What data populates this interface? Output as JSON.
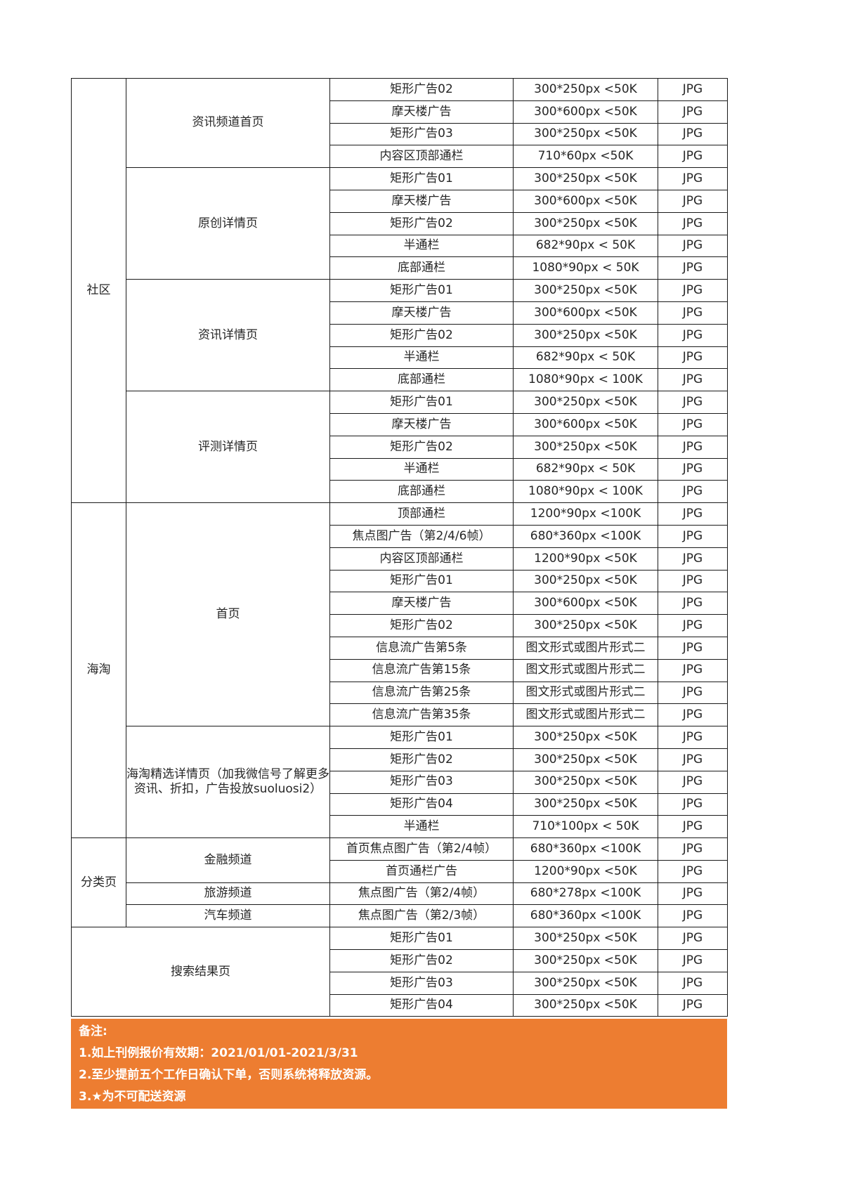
{
  "colors": {
    "accent_orange": "#ED7D31",
    "table_border": "#1a1a1a",
    "text": "#262626",
    "footer_text": "#ffffff"
  },
  "table": {
    "sections": [
      {
        "category": "社区",
        "groups": [
          {
            "page": "资讯频道首页",
            "rows": [
              {
                "ad": "矩形广告02",
                "size": "300*250px <50K",
                "format": "JPG"
              },
              {
                "ad": "摩天楼广告",
                "size": "300*600px <50K",
                "format": "JPG"
              },
              {
                "ad": "矩形广告03",
                "size": "300*250px <50K",
                "format": "JPG"
              },
              {
                "ad": "内容区顶部通栏",
                "size": "710*60px <50K",
                "format": "JPG"
              }
            ]
          },
          {
            "page": "原创详情页",
            "rows": [
              {
                "ad": "矩形广告01",
                "size": "300*250px <50K",
                "format": "JPG"
              },
              {
                "ad": "摩天楼广告",
                "size": "300*600px <50K",
                "format": "JPG"
              },
              {
                "ad": "矩形广告02",
                "size": "300*250px <50K",
                "format": "JPG"
              },
              {
                "ad": "半通栏",
                "size": "682*90px < 50K",
                "format": "JPG"
              },
              {
                "ad": "底部通栏",
                "size": "1080*90px < 50K",
                "format": "JPG"
              }
            ]
          },
          {
            "page": "资讯详情页",
            "rows": [
              {
                "ad": "矩形广告01",
                "size": "300*250px <50K",
                "format": "JPG"
              },
              {
                "ad": "摩天楼广告",
                "size": "300*600px <50K",
                "format": "JPG"
              },
              {
                "ad": "矩形广告02",
                "size": "300*250px <50K",
                "format": "JPG"
              },
              {
                "ad": "半通栏",
                "size": "682*90px < 50K",
                "format": "JPG"
              },
              {
                "ad": "底部通栏",
                "size": "1080*90px < 100K",
                "format": "JPG"
              }
            ]
          },
          {
            "page": "评测详情页",
            "rows": [
              {
                "ad": "矩形广告01",
                "size": "300*250px <50K",
                "format": "JPG"
              },
              {
                "ad": "摩天楼广告",
                "size": "300*600px <50K",
                "format": "JPG"
              },
              {
                "ad": "矩形广告02",
                "size": "300*250px <50K",
                "format": "JPG"
              },
              {
                "ad": "半通栏",
                "size": "682*90px < 50K",
                "format": "JPG"
              },
              {
                "ad": "底部通栏",
                "size": "1080*90px < 100K",
                "format": "JPG"
              }
            ]
          }
        ]
      },
      {
        "category": "海淘",
        "groups": [
          {
            "page": "首页",
            "rows": [
              {
                "ad": "顶部通栏",
                "size": "1200*90px <100K",
                "format": "JPG"
              },
              {
                "ad": "焦点图广告（第2/4/6帧）",
                "size": "680*360px <100K",
                "format": "JPG"
              },
              {
                "ad": "内容区顶部通栏",
                "size": "1200*90px <50K",
                "format": "JPG"
              },
              {
                "ad": "矩形广告01",
                "size": "300*250px <50K",
                "format": "JPG"
              },
              {
                "ad": "摩天楼广告",
                "size": "300*600px <50K",
                "format": "JPG"
              },
              {
                "ad": "矩形广告02",
                "size": "300*250px <50K",
                "format": "JPG"
              },
              {
                "ad": "信息流广告第5条",
                "size": "图文形式或图片形式二",
                "format": "JPG"
              },
              {
                "ad": "信息流广告第15条",
                "size": "图文形式或图片形式二",
                "format": "JPG"
              },
              {
                "ad": "信息流广告第25条",
                "size": "图文形式或图片形式二",
                "format": "JPG"
              },
              {
                "ad": "信息流广告第35条",
                "size": "图文形式或图片形式二",
                "format": "JPG"
              }
            ]
          },
          {
            "page": "海淘精选详情页（加我微信号了解更多资讯、折扣，广告投放suoluosi2）",
            "rows": [
              {
                "ad": "矩形广告01",
                "size": "300*250px <50K",
                "format": "JPG"
              },
              {
                "ad": "矩形广告02",
                "size": "300*250px <50K",
                "format": "JPG"
              },
              {
                "ad": "矩形广告03",
                "size": "300*250px <50K",
                "format": "JPG"
              },
              {
                "ad": "矩形广告04",
                "size": "300*250px <50K",
                "format": "JPG"
              },
              {
                "ad": "半通栏",
                "size": "710*100px < 50K",
                "format": "JPG"
              }
            ]
          }
        ]
      },
      {
        "category": "分类页",
        "groups": [
          {
            "page": "金融频道",
            "rows": [
              {
                "ad": "首页焦点图广告（第2/4帧）",
                "size": "680*360px <100K",
                "format": "JPG"
              },
              {
                "ad": "首页通栏广告",
                "size": "1200*90px <50K",
                "format": "JPG"
              }
            ]
          },
          {
            "page": "旅游频道",
            "rows": [
              {
                "ad": "焦点图广告（第2/4帧）",
                "size": "680*278px <100K",
                "format": "JPG"
              }
            ]
          },
          {
            "page": "汽车频道",
            "rows": [
              {
                "ad": "焦点图广告（第2/3帧）",
                "size": "680*360px <100K",
                "format": "JPG"
              }
            ]
          }
        ]
      },
      {
        "category": "",
        "groups": [
          {
            "page": "搜索结果页",
            "rows": [
              {
                "ad": "矩形广告01",
                "size": "300*250px <50K",
                "format": "JPG"
              },
              {
                "ad": "矩形广告02",
                "size": "300*250px <50K",
                "format": "JPG"
              },
              {
                "ad": "矩形广告03",
                "size": "300*250px <50K",
                "format": "JPG"
              },
              {
                "ad": "矩形广告04",
                "size": "300*250px <50K",
                "format": "JPG"
              }
            ]
          }
        ]
      }
    ]
  },
  "footer": {
    "title": "备注:",
    "notes": [
      "1.如上刊例报价有效期：2021/01/01-2021/3/31",
      "2.至少提前五个工作日确认下单，否则系统将释放资源。",
      "3.★为不可配送资源"
    ]
  }
}
